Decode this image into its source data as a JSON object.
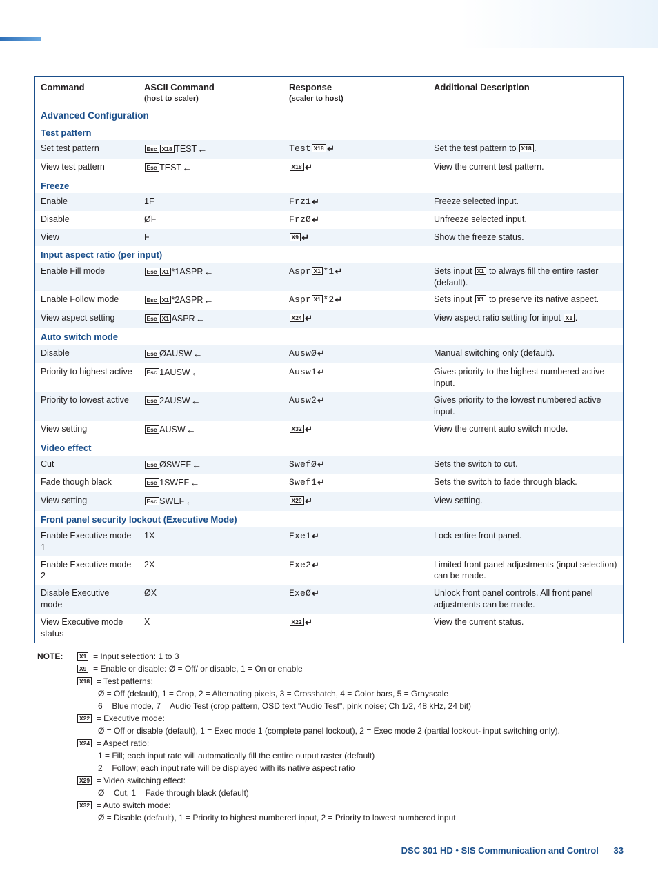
{
  "colors": {
    "accent": "#1a4e8a",
    "altRow": "#eef4fa",
    "text": "#231f20"
  },
  "headers": {
    "c1": "Command",
    "c2": "ASCII Command",
    "c2sub": "(host to scaler)",
    "c3": "Response",
    "c3sub": "(scaler to host)",
    "c4": "Additional Description"
  },
  "sections": [
    {
      "type": "section",
      "title": "Advanced Configuration"
    },
    {
      "type": "subsection",
      "title": "Test pattern"
    },
    {
      "type": "row",
      "alt": true,
      "c1": "Set test pattern",
      "c2": [
        {
          "k": "Esc"
        },
        {
          "k": "X18"
        },
        {
          "t": "TEST"
        },
        {
          "a": 1
        }
      ],
      "c3": [
        {
          "m": "Test"
        },
        {
          "k": "X18"
        },
        {
          "e": 1
        }
      ],
      "c4": [
        {
          "t": "Set the test pattern to "
        },
        {
          "k": "X18"
        },
        {
          "t": "."
        }
      ]
    },
    {
      "type": "row",
      "alt": false,
      "c1": "View test pattern",
      "c2": [
        {
          "k": "Esc"
        },
        {
          "t": "TEST"
        },
        {
          "a": 1
        }
      ],
      "c3": [
        {
          "k": "X18"
        },
        {
          "e": 1
        }
      ],
      "c4": [
        {
          "t": "View the current test pattern."
        }
      ]
    },
    {
      "type": "subsection",
      "title": "Freeze"
    },
    {
      "type": "row",
      "alt": true,
      "c1": "Enable",
      "c2": [
        {
          "t": "1F"
        }
      ],
      "c3": [
        {
          "m": "Frz1"
        },
        {
          "e": 1
        }
      ],
      "c4": [
        {
          "t": "Freeze selected input."
        }
      ]
    },
    {
      "type": "row",
      "alt": false,
      "c1": "Disable",
      "c2": [
        {
          "t": "ØF"
        }
      ],
      "c3": [
        {
          "m": "FrzØ"
        },
        {
          "e": 1
        }
      ],
      "c4": [
        {
          "t": "Unfreeze selected input."
        }
      ]
    },
    {
      "type": "row",
      "alt": true,
      "c1": "View",
      "c2": [
        {
          "t": "F"
        }
      ],
      "c3": [
        {
          "k": "X9"
        },
        {
          "e": 1
        }
      ],
      "c4": [
        {
          "t": "Show the freeze status."
        }
      ]
    },
    {
      "type": "subsection",
      "title": "Input aspect ratio (per input)"
    },
    {
      "type": "row",
      "alt": true,
      "c1": "Enable Fill mode",
      "c2": [
        {
          "k": "Esc"
        },
        {
          "k": "X1"
        },
        {
          "t": "*1ASPR"
        },
        {
          "a": 1
        }
      ],
      "c3": [
        {
          "m": "Aspr"
        },
        {
          "k": "X1"
        },
        {
          "m": "*1"
        },
        {
          "e": 1
        }
      ],
      "c4": [
        {
          "t": "Sets input "
        },
        {
          "k": "X1"
        },
        {
          "t": " to always fill the entire raster (default)."
        }
      ]
    },
    {
      "type": "row",
      "alt": false,
      "c1": "Enable Follow mode",
      "c2": [
        {
          "k": "Esc"
        },
        {
          "k": "X1"
        },
        {
          "t": "*2ASPR"
        },
        {
          "a": 1
        }
      ],
      "c3": [
        {
          "m": "Aspr"
        },
        {
          "k": "X1"
        },
        {
          "m": "*2"
        },
        {
          "e": 1
        }
      ],
      "c4": [
        {
          "t": "Sets input "
        },
        {
          "k": "X1"
        },
        {
          "t": " to preserve its native aspect."
        }
      ]
    },
    {
      "type": "row",
      "alt": true,
      "c1": "View aspect setting",
      "c2": [
        {
          "k": "Esc"
        },
        {
          "k": "X1"
        },
        {
          "t": "ASPR"
        },
        {
          "a": 1
        }
      ],
      "c3": [
        {
          "k": "X24"
        },
        {
          "e": 1
        }
      ],
      "c4": [
        {
          "t": "View aspect ratio setting for input "
        },
        {
          "k": "X1"
        },
        {
          "t": "."
        }
      ]
    },
    {
      "type": "subsection",
      "title": "Auto switch mode"
    },
    {
      "type": "row",
      "alt": true,
      "c1": "Disable",
      "c2": [
        {
          "k": "Esc"
        },
        {
          "t": "ØAUSW"
        },
        {
          "a": 1
        }
      ],
      "c3": [
        {
          "m": "AuswØ"
        },
        {
          "e": 1
        }
      ],
      "c4": [
        {
          "t": "Manual switching only (default)."
        }
      ]
    },
    {
      "type": "row",
      "alt": false,
      "c1": "Priority to highest active",
      "c2": [
        {
          "k": "Esc"
        },
        {
          "t": "1AUSW"
        },
        {
          "a": 1
        }
      ],
      "c3": [
        {
          "m": "Ausw1"
        },
        {
          "e": 1
        }
      ],
      "c4": [
        {
          "t": "Gives priority to the highest numbered active input."
        }
      ]
    },
    {
      "type": "row",
      "alt": true,
      "c1": "Priority to lowest active",
      "c2": [
        {
          "k": "Esc"
        },
        {
          "t": "2AUSW"
        },
        {
          "a": 1
        }
      ],
      "c3": [
        {
          "m": "Ausw2"
        },
        {
          "e": 1
        }
      ],
      "c4": [
        {
          "t": "Gives priority to the lowest numbered active input."
        }
      ]
    },
    {
      "type": "row",
      "alt": false,
      "c1": "View setting",
      "c2": [
        {
          "k": "Esc"
        },
        {
          "t": "AUSW"
        },
        {
          "a": 1
        }
      ],
      "c3": [
        {
          "k": "X32"
        },
        {
          "e": 1
        }
      ],
      "c4": [
        {
          "t": "View the current auto switch mode."
        }
      ]
    },
    {
      "type": "subsection",
      "title": "Video effect"
    },
    {
      "type": "row",
      "alt": true,
      "c1": "Cut",
      "c2": [
        {
          "k": "Esc"
        },
        {
          "t": "ØSWEF"
        },
        {
          "a": 1
        }
      ],
      "c3": [
        {
          "m": "SwefØ"
        },
        {
          "e": 1
        }
      ],
      "c4": [
        {
          "t": "Sets the switch to cut."
        }
      ]
    },
    {
      "type": "row",
      "alt": false,
      "c1": "Fade though black",
      "c2": [
        {
          "k": "Esc"
        },
        {
          "t": "1SWEF"
        },
        {
          "a": 1
        }
      ],
      "c3": [
        {
          "m": "Swef1"
        },
        {
          "e": 1
        }
      ],
      "c4": [
        {
          "t": "Sets the switch to fade through black."
        }
      ]
    },
    {
      "type": "row",
      "alt": true,
      "c1": "View setting",
      "c2": [
        {
          "k": "Esc"
        },
        {
          "t": "SWEF"
        },
        {
          "a": 1
        }
      ],
      "c3": [
        {
          "k": "X29"
        },
        {
          "e": 1
        }
      ],
      "c4": [
        {
          "t": "View setting."
        }
      ]
    },
    {
      "type": "subsection",
      "title": "Front panel security lockout (Executive Mode)"
    },
    {
      "type": "row",
      "alt": true,
      "c1": "Enable Executive mode 1",
      "c2": [
        {
          "t": "1X"
        }
      ],
      "c3": [
        {
          "m": "Exe1"
        },
        {
          "e": 1
        }
      ],
      "c4": [
        {
          "t": "Lock entire front panel."
        }
      ]
    },
    {
      "type": "row",
      "alt": false,
      "c1": "Enable Executive mode 2",
      "c2": [
        {
          "t": "2X"
        }
      ],
      "c3": [
        {
          "m": "Exe2"
        },
        {
          "e": 1
        }
      ],
      "c4": [
        {
          "t": "Limited front panel adjustments (input selection) can be made."
        }
      ]
    },
    {
      "type": "row",
      "alt": true,
      "c1": "Disable Executive mode",
      "c2": [
        {
          "t": "ØX"
        }
      ],
      "c3": [
        {
          "m": "ExeØ"
        },
        {
          "e": 1
        }
      ],
      "c4": [
        {
          "t": "Unlock front panel controls. All front panel adjustments can be made."
        }
      ]
    },
    {
      "type": "row",
      "alt": false,
      "c1": "View Executive mode status",
      "c2": [
        {
          "t": "X"
        }
      ],
      "c3": [
        {
          "k": "X22"
        },
        {
          "e": 1
        }
      ],
      "c4": [
        {
          "t": "View the current status."
        }
      ]
    }
  ],
  "note": {
    "label": "NOTE:",
    "lines": [
      {
        "var": "X1",
        "text": "= Input selection: 1 to 3"
      },
      {
        "var": "X9",
        "text": "= Enable or disable: Ø = Off/ or disable, 1 = On or enable"
      },
      {
        "var": "X18",
        "text": "= Test patterns:"
      },
      {
        "sub": true,
        "text": "Ø = Off (default), 1 = Crop, 2 = Alternating pixels, 3 = Crosshatch, 4 = Color bars, 5 = Grayscale"
      },
      {
        "sub": true,
        "text": "6 = Blue mode, 7 = Audio Test (crop pattern, OSD text \"Audio Test\", pink noise; Ch 1/2, 48 kHz, 24 bit)"
      },
      {
        "var": "X22",
        "text": "= Executive mode:"
      },
      {
        "sub": true,
        "text": "Ø = Off or disable (default), 1 = Exec mode 1 (complete panel lockout), 2 = Exec mode 2 (partial lockout- input switching only)."
      },
      {
        "var": "X24",
        "text": "= Aspect ratio:"
      },
      {
        "sub": true,
        "text": "1 = Fill; each input rate will automatically fill the entire output raster (default)"
      },
      {
        "sub": true,
        "text": "2 = Follow; each input rate will be displayed with its native aspect ratio"
      },
      {
        "var": "X29",
        "text": "= Video switching effect:"
      },
      {
        "sub": true,
        "text": "Ø = Cut, 1 = Fade through black (default)"
      },
      {
        "var": "X32",
        "text": "= Auto switch mode:"
      },
      {
        "sub": true,
        "text": "Ø = Disable (default), 1 = Priority to highest numbered input, 2 = Priority to lowest numbered input"
      }
    ]
  },
  "footer": {
    "title": "DSC 301 HD • SIS Communication and Control",
    "page": "33"
  }
}
